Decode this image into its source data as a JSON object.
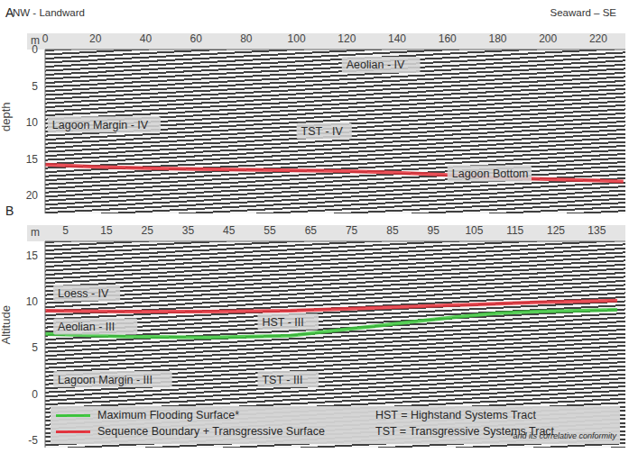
{
  "chart_data": [
    {
      "type": "line",
      "title": "A",
      "direction_labels": [
        "NW - Landward",
        "Seaward – SE"
      ],
      "x_label": "m",
      "y_label": "depth",
      "xlim": [
        0,
        230.8
      ],
      "xticks": [
        0,
        20,
        40,
        60,
        80,
        100,
        120,
        140,
        160,
        180,
        200,
        220
      ],
      "ylim": [
        22.5,
        0
      ],
      "yticks": [
        0,
        5,
        10,
        15,
        20
      ],
      "series": [
        {
          "color": "#e8323c",
          "x": [
            0,
            20,
            40,
            60,
            80,
            100,
            120,
            140,
            160,
            180,
            200,
            220,
            230
          ],
          "values": [
            15.8,
            16.1,
            16.3,
            16.4,
            16.5,
            16.6,
            16.7,
            16.9,
            17.2,
            17.6,
            17.8,
            18.0,
            18.1
          ]
        }
      ],
      "annotations": [
        {
          "text": "Aeolian - IV",
          "x": 118,
          "y": 2.1
        },
        {
          "text": "Lagoon Margin - IV",
          "x": 1,
          "y": 10.3
        },
        {
          "text": "TST - IV",
          "x": 100,
          "y": 11.2
        },
        {
          "text": "Lagoon Bottom",
          "x": 160,
          "y": 17
        }
      ]
    },
    {
      "type": "line",
      "title": "B",
      "x_label": "m",
      "y_label": "Altitude",
      "xlim": [
        0,
        142
      ],
      "xticks": [
        5,
        15,
        25,
        35,
        45,
        55,
        65,
        75,
        85,
        95,
        105,
        115,
        125,
        135
      ],
      "ylim": [
        -5.8,
        16.5
      ],
      "yticks": [
        -5,
        0,
        5,
        10,
        15
      ],
      "series": [
        {
          "name": "Maximum Flooding Surface*",
          "color": "#3cc83c",
          "x": [
            0,
            20,
            40,
            60,
            70,
            80,
            90,
            100,
            110,
            120,
            140
          ],
          "values": [
            6.5,
            6.2,
            6.1,
            6.3,
            6.8,
            7.3,
            7.8,
            8.3,
            8.7,
            8.9,
            9.1
          ]
        },
        {
          "name": "Sequence Boundary + Transgressive Surface",
          "color": "#e8323c",
          "x": [
            0,
            20,
            40,
            60,
            80,
            100,
            120,
            140
          ],
          "values": [
            9.0,
            8.9,
            8.9,
            9.0,
            9.3,
            9.6,
            9.9,
            10.1
          ]
        }
      ],
      "legend": "bottom",
      "legend_notes": [
        "HST = Highstand Systems Tract",
        "TST = Transgressive Systems Tract"
      ],
      "footnote": "*and its correlative conformity",
      "annotations": [
        {
          "text": "Loess - IV",
          "x": 2,
          "y": 10.9
        },
        {
          "text": "Aeolian - III",
          "x": 2,
          "y": 7.3
        },
        {
          "text": "HST - III",
          "x": 52,
          "y": 7.8
        },
        {
          "text": "Lagoon Margin - III",
          "x": 2,
          "y": 1.6
        },
        {
          "text": "TST - III",
          "x": 52,
          "y": 1.6
        }
      ]
    }
  ]
}
